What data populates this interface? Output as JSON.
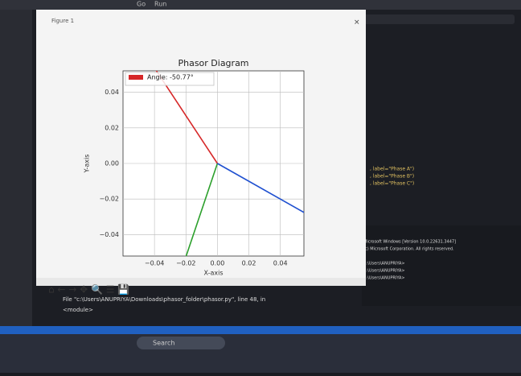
{
  "menu": [
    "Go",
    "Run"
  ],
  "window": {
    "title": "Figure 1"
  },
  "editor": {
    "lines": [
      ", label=\"Phase A\")",
      ", label=\"Phase B\")",
      ", label=\"Phase C\")"
    ]
  },
  "terminal": {
    "lines": [
      "Microsoft Windows [Version 10.0.22631.3447]",
      "(c) Microsoft Corporation. All rights reserved.",
      "C:\\Users\\ANUPRIYA>",
      "C:\\Users\\ANUPRIYA>",
      "C:\\Users\\ANUPRIYA>"
    ],
    "error": [
      "File \"c:\\Users\\ANUPRIYA\\Downloads\\phasor_folder\\phasor.py\", line 48, in",
      "<module>"
    ]
  },
  "taskbar": {
    "search": "Search"
  },
  "chart_data": {
    "type": "line",
    "title": "Phasor Diagram",
    "x_label": "X-axis",
    "y_label": "Y-axis",
    "xlim": [
      -0.06,
      0.055
    ],
    "ylim": [
      -0.052,
      0.052
    ],
    "xticks": [
      {
        "value": -0.04,
        "label": "−0.04"
      },
      {
        "value": -0.02,
        "label": "−0.02"
      },
      {
        "value": 0,
        "label": "0.00"
      },
      0.02,
      0.04
    ],
    "yticks": [
      {
        "value": -0.04,
        "label": "−0.04"
      },
      {
        "value": -0.02,
        "label": "−0.02"
      },
      {
        "value": 0,
        "label": "0.00"
      },
      0.02,
      0.04
    ],
    "grid": true,
    "legend": "upper left",
    "series": [
      {
        "name": "Angle: -50.77°",
        "color": "#d62728",
        "x": [
          0,
          -0.041
        ],
        "y": [
          0,
          0.055
        ]
      },
      {
        "color": "#2ca02c",
        "x": [
          0,
          -0.021
        ],
        "y": [
          0,
          -0.055
        ]
      },
      {
        "color": "#1f50d0",
        "x": [
          0,
          0.056
        ],
        "y": [
          0,
          -0.028
        ]
      }
    ]
  }
}
